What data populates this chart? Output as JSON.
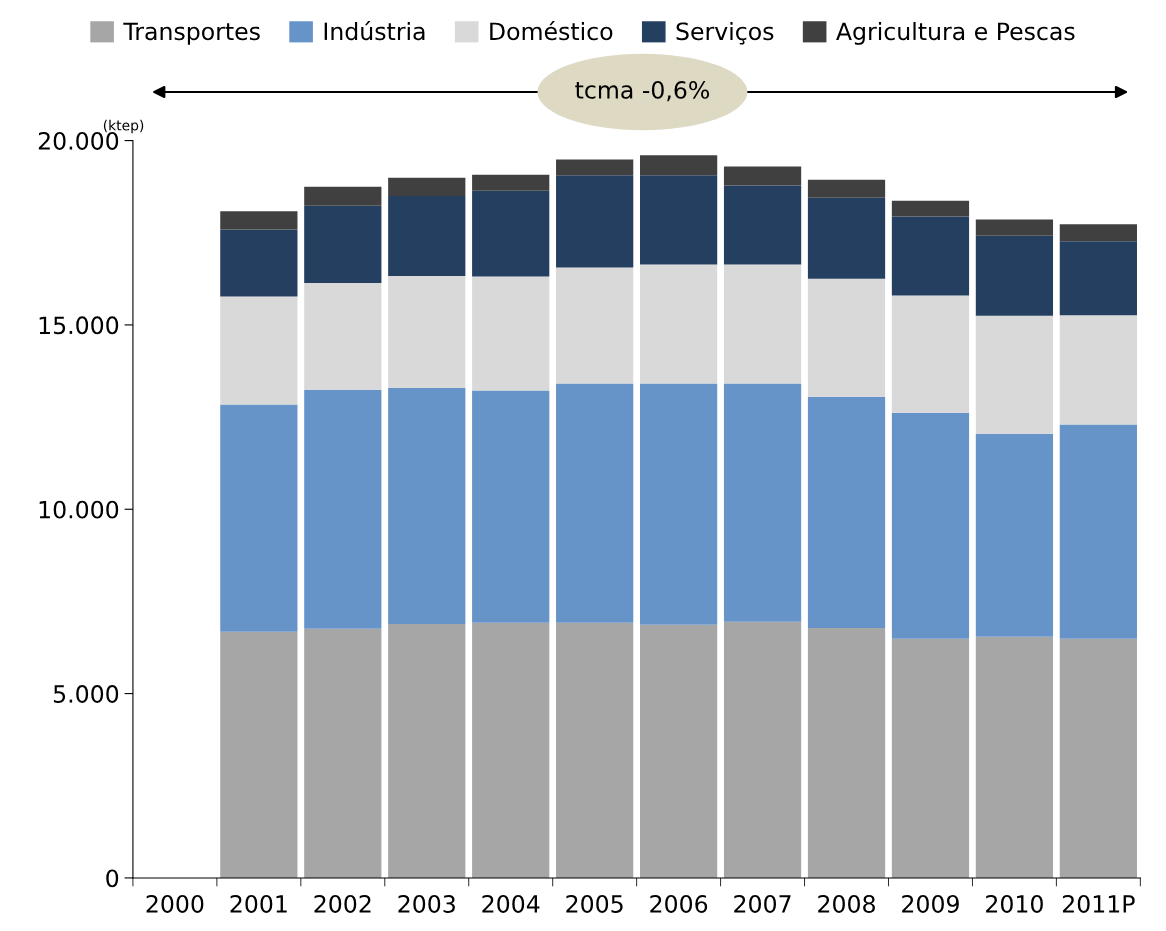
{
  "chart_data": {
    "type": "bar",
    "stacked": true,
    "ylabel": "(ktep)",
    "categories": [
      "2000",
      "2001",
      "2002",
      "2003",
      "2004",
      "2005",
      "2006",
      "2007",
      "2008",
      "2009",
      "2010",
      "2011P"
    ],
    "series": [
      {
        "name": "Transportes",
        "color": "#a6a6a6",
        "values": [
          null,
          6680,
          6760,
          6890,
          6920,
          6920,
          6870,
          6950,
          6780,
          6490,
          6540,
          6490
        ]
      },
      {
        "name": "Indústria",
        "color": "#6794c8",
        "values": [
          null,
          6160,
          6480,
          6400,
          6300,
          6490,
          6540,
          6460,
          6270,
          6130,
          5510,
          5810
        ]
      },
      {
        "name": "Doméstico",
        "color": "#d9d9d9",
        "values": [
          null,
          2930,
          2900,
          3040,
          3090,
          3150,
          3230,
          3230,
          3200,
          3180,
          3200,
          2960
        ]
      },
      {
        "name": "Serviços",
        "color": "#243f60",
        "values": [
          null,
          1820,
          2090,
          2170,
          2330,
          2500,
          2420,
          2140,
          2200,
          2140,
          2170,
          2010
        ]
      },
      {
        "name": "Agricultura e Pescas",
        "color": "#404040",
        "values": [
          null,
          490,
          520,
          490,
          430,
          430,
          540,
          520,
          490,
          430,
          440,
          460
        ]
      }
    ],
    "ylim": [
      0,
      20000
    ],
    "yticks": [
      0,
      {
        "value": 5000,
        "label": "5.000"
      },
      {
        "value": 10000,
        "label": "10.000"
      },
      {
        "value": 15000,
        "label": "15.000"
      },
      {
        "value": 20000,
        "label": "20.000"
      }
    ],
    "annotations": [
      "tcma -0,6%"
    ],
    "legend": "top",
    "grid": false
  }
}
